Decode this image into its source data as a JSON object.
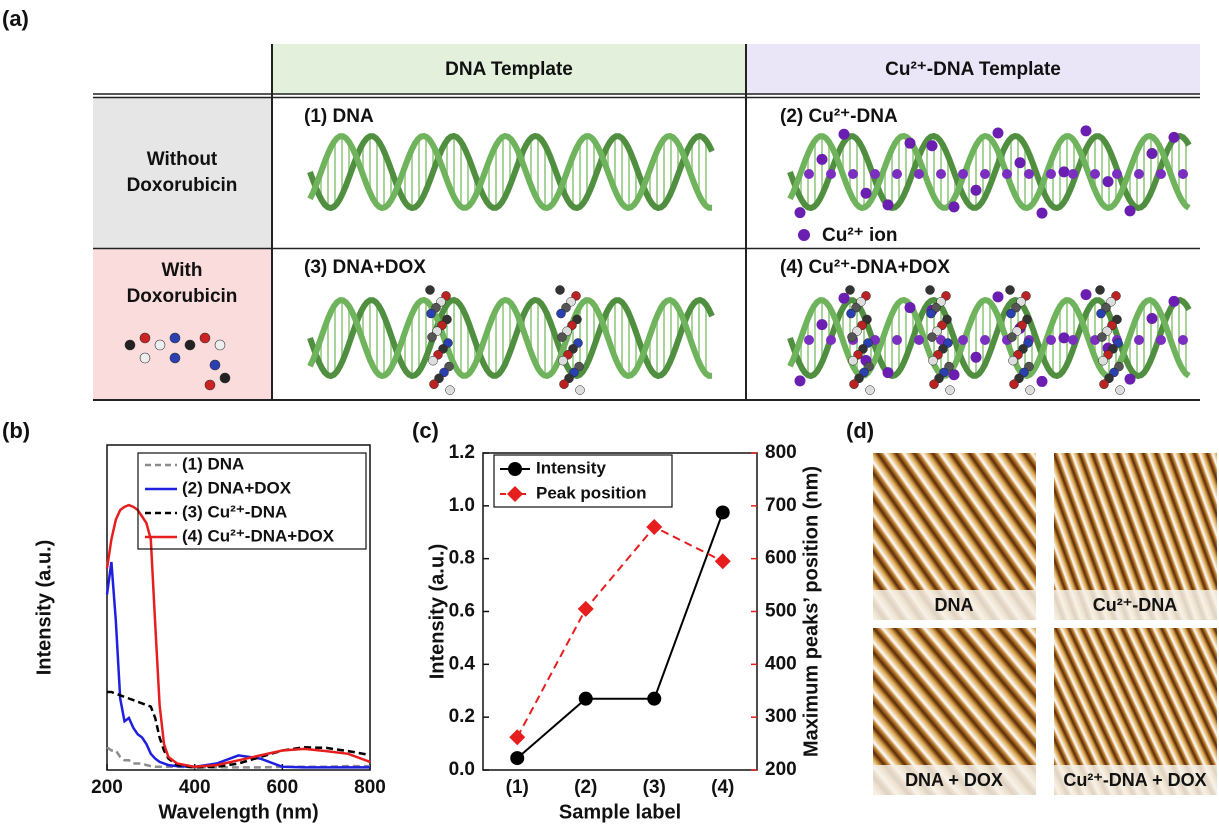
{
  "panel_labels": [
    "(a)",
    "(b)",
    "(c)",
    "(d)"
  ],
  "table": {
    "columns": [
      "DNA Template",
      "Cu²⁺-DNA Template"
    ],
    "rows": [
      [
        "Without",
        "Doxorubicin"
      ],
      [
        "With",
        "Doxorubicin"
      ]
    ],
    "cells": [
      [
        "(1) DNA",
        "(2) Cu²⁺-DNA"
      ],
      [
        "(3) DNA+DOX",
        "(4) Cu²⁺-DNA+DOX"
      ]
    ],
    "ion_legend": "Cu²⁺ ion"
  },
  "chart_data": [
    {
      "type": "line",
      "xlabel": "Wavelength (nm)",
      "ylabel": "Intensity (a.u.)",
      "x": [
        200,
        210,
        220,
        230,
        240,
        250,
        260,
        270,
        280,
        290,
        300,
        310,
        320,
        330,
        340,
        360,
        400,
        450,
        500,
        550,
        600,
        650,
        700,
        750,
        800
      ],
      "xlim": [
        200,
        800
      ],
      "xticks": [
        200,
        400,
        600,
        800
      ],
      "ylim": [
        0,
        1
      ],
      "legend": "upper right",
      "series": [
        {
          "name": "(1) DNA",
          "color": "#8c8c8c",
          "dash": true,
          "values": [
            0.07,
            0.06,
            0.06,
            0.04,
            0.03,
            0.03,
            0.02,
            0.02,
            0.02,
            0.015,
            0.012,
            0.01,
            0.01,
            0.01,
            0.01,
            0.01,
            0.008,
            0.008,
            0.008,
            0.008,
            0.01,
            0.01,
            0.01,
            0.012,
            0.012
          ]
        },
        {
          "name": "(2) DNA+DOX",
          "color": "#1f1fe0",
          "dash": false,
          "values": [
            0.54,
            0.64,
            0.46,
            0.22,
            0.15,
            0.16,
            0.13,
            0.11,
            0.1,
            0.08,
            0.05,
            0.035,
            0.025,
            0.02,
            0.015,
            0.012,
            0.01,
            0.02,
            0.045,
            0.035,
            0.01,
            0.008,
            0.008,
            0.008,
            0.008
          ]
        },
        {
          "name": "(3) Cu²⁺-DNA",
          "color": "#000000",
          "dash": true,
          "values": [
            0.24,
            0.24,
            0.235,
            0.23,
            0.225,
            0.22,
            0.215,
            0.21,
            0.205,
            0.2,
            0.195,
            0.16,
            0.1,
            0.06,
            0.035,
            0.015,
            0.008,
            0.01,
            0.02,
            0.04,
            0.06,
            0.07,
            0.068,
            0.058,
            0.046
          ]
        },
        {
          "name": "(4) Cu²⁺-DNA+DOX",
          "color": "#e61e1e",
          "dash": false,
          "values": [
            0.62,
            0.71,
            0.77,
            0.8,
            0.81,
            0.815,
            0.81,
            0.8,
            0.78,
            0.76,
            0.71,
            0.45,
            0.2,
            0.08,
            0.04,
            0.02,
            0.01,
            0.015,
            0.03,
            0.045,
            0.06,
            0.065,
            0.058,
            0.05,
            0.025
          ]
        }
      ]
    },
    {
      "type": "line",
      "xlabel": "Sample label",
      "ylabel": "Intensity (a.u.)",
      "y2label": "Maximum peaks’ position (nm)",
      "categories": [
        "(1)",
        "(2)",
        "(3)",
        "(4)"
      ],
      "ylim": [
        0,
        1.2
      ],
      "yticks": [
        {
          "value": 0,
          "label": "0.0"
        },
        0.2,
        0.4,
        0.6,
        0.8,
        {
          "value": 1,
          "label": "1.0"
        },
        1.2
      ],
      "y2lim": [
        200,
        800
      ],
      "y2ticks": [
        200,
        300,
        400,
        500,
        600,
        700,
        800
      ],
      "y2color": "#e61e1e",
      "legend": "upper left",
      "series": [
        {
          "name": "Intensity",
          "color": "#000000",
          "dash": false,
          "marker": "circle",
          "values": [
            0.045,
            0.27,
            0.27,
            0.975
          ]
        },
        {
          "name": "Peak position",
          "color": "#e61e1e",
          "dash": true,
          "marker": "diamond",
          "axis": "y2",
          "values": [
            262,
            505,
            660,
            595
          ]
        }
      ]
    }
  ],
  "images": {
    "labels": [
      "DNA",
      "Cu²⁺-DNA",
      "DNA + DOX",
      "Cu²⁺-DNA + DOX"
    ]
  }
}
